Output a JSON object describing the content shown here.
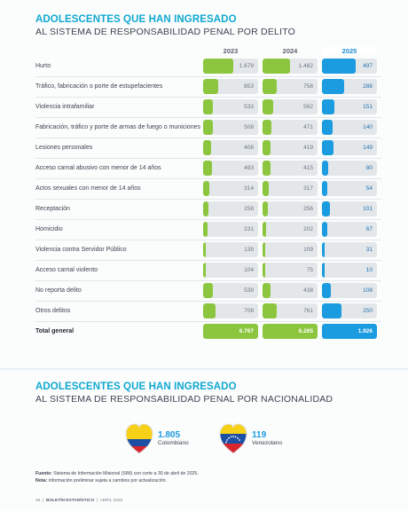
{
  "section1": {
    "title": "ADOLESCENTES QUE HAN INGRESADO",
    "subtitle": "AL SISTEMA DE RESPONSABILIDAD PENAL POR DELITO"
  },
  "years": [
    "2023",
    "2024",
    "2025"
  ],
  "colors": {
    "green": "#8cc63f",
    "blue": "#1b9be0",
    "title": "#10a9d0"
  },
  "rows": [
    {
      "label": "Hurto",
      "v2023": "1.679",
      "v2024": "1.482",
      "v2025": "497",
      "f2023": 0.55,
      "f2024": 0.5,
      "f2025": 0.62
    },
    {
      "label": "Tráfico, fabricación o porte de estupefacientes",
      "v2023": "853",
      "v2024": "758",
      "v2025": "288",
      "f2023": 0.28,
      "f2024": 0.26,
      "f2025": 0.4
    },
    {
      "label": "Violencia intrafamiliar",
      "v2023": "533",
      "v2024": "562",
      "v2025": "151",
      "f2023": 0.18,
      "f2024": 0.19,
      "f2025": 0.22
    },
    {
      "label": "Fabricación, tráfico y porte de armas de fuego o municiones",
      "v2023": "508",
      "v2024": "471",
      "v2025": "140",
      "f2023": 0.17,
      "f2024": 0.16,
      "f2025": 0.2
    },
    {
      "label": "Lesiones personales",
      "v2023": "408",
      "v2024": "419",
      "v2025": "149",
      "f2023": 0.14,
      "f2024": 0.14,
      "f2025": 0.21
    },
    {
      "label": "Acceso carnal abusivo con menor de 14 años",
      "v2023": "493",
      "v2024": "415",
      "v2025": "80",
      "f2023": 0.16,
      "f2024": 0.14,
      "f2025": 0.12
    },
    {
      "label": "Actos sexuales con menor de 14 años",
      "v2023": "314",
      "v2024": "317",
      "v2025": "54",
      "f2023": 0.11,
      "f2024": 0.11,
      "f2025": 0.09
    },
    {
      "label": "Receptación",
      "v2023": "258",
      "v2024": "256",
      "v2025": "101",
      "f2023": 0.09,
      "f2024": 0.09,
      "f2025": 0.15
    },
    {
      "label": "Homicidio",
      "v2023": "231",
      "v2024": "202",
      "v2025": "67",
      "f2023": 0.08,
      "f2024": 0.07,
      "f2025": 0.1
    },
    {
      "label": "Violencia contra Servidor Público",
      "v2023": "139",
      "v2024": "109",
      "v2025": "31",
      "f2023": 0.05,
      "f2024": 0.04,
      "f2025": 0.05
    },
    {
      "label": "Acceso carnal violento",
      "v2023": "104",
      "v2024": "75",
      "v2025": "10",
      "f2023": 0.04,
      "f2024": 0.03,
      "f2025": 0.02
    },
    {
      "label": "No reporta delito",
      "v2023": "539",
      "v2024": "438",
      "v2025": "108",
      "f2023": 0.18,
      "f2024": 0.15,
      "f2025": 0.16
    },
    {
      "label": "Otros delitos",
      "v2023": "708",
      "v2024": "761",
      "v2025": "250",
      "f2023": 0.23,
      "f2024": 0.25,
      "f2025": 0.35
    }
  ],
  "total": {
    "label": "Total general",
    "v2023": "6.767",
    "v2024": "6.265",
    "v2025": "1.926"
  },
  "section2": {
    "title": "ADOLESCENTES QUE HAN INGRESADO",
    "subtitle": "AL SISTEMA DE RESPONSABILIDAD PENAL POR NACIONALIDAD"
  },
  "nationality": [
    {
      "value": "1.805",
      "label": "Colombiano",
      "icon": "colombia-flag-heart-icon"
    },
    {
      "value": "119",
      "label": "Venezolano",
      "icon": "venezuela-flag-heart-icon"
    }
  ],
  "notes": {
    "fuente_label": "Fuente:",
    "fuente": "Sistema de Información Misional (SIM) con corte a 30 de abril de 2025.",
    "nota_label": "Nota:",
    "nota": "información preliminar sujeta a cambios por actualización."
  },
  "footer": {
    "page": "46",
    "publication": "BOLETÍN ESTADÍSTICO",
    "date": "ABRIL 2025"
  }
}
